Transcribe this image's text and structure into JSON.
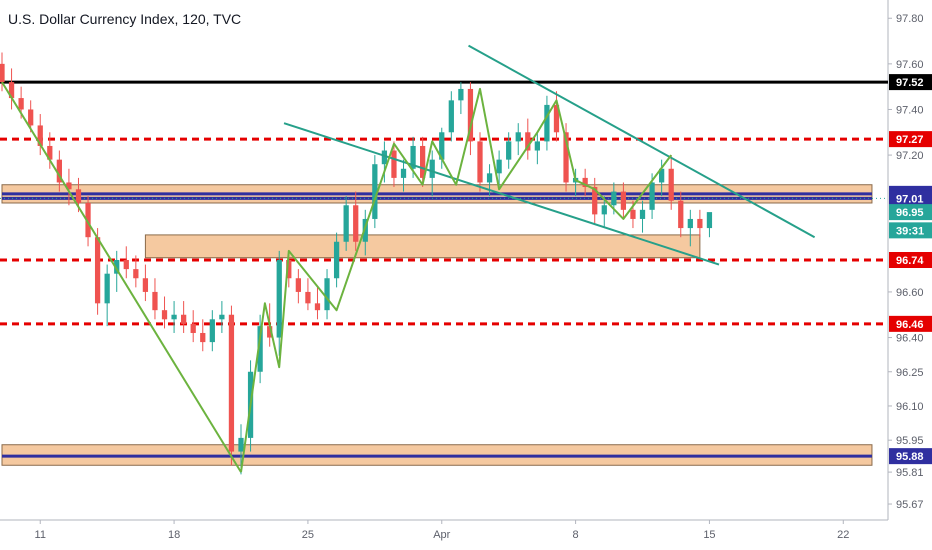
{
  "colors": {
    "up": "#26a69a",
    "down": "#ef5350",
    "resistance_black": "#000000",
    "dashed_red": "#e50000",
    "zone_fill": "#f5c9a0",
    "zone_line": "#2f2fa0",
    "channel": "#26a08a",
    "wave": "#6cb33f",
    "last_price": "#26a69a"
  },
  "chart_data": {
    "type": "candlestick",
    "title": "U.S. Dollar Currency Index, 120, TVC",
    "ylim": [
      95.6,
      97.88
    ],
    "y_ticks": [
      "97.80",
      "97.60",
      "97.40",
      "97.20",
      "96.60",
      "96.40",
      "96.25",
      "96.10",
      "95.95",
      "95.81",
      "95.67"
    ],
    "x_ticks": [
      "11",
      "18",
      "25",
      "Apr",
      "8",
      "15",
      "22"
    ],
    "x_tick_index": [
      4,
      18,
      32,
      46,
      60,
      74,
      88
    ],
    "x_range": [
      0,
      91
    ],
    "price_labels": [
      {
        "value": 97.52,
        "label": "97.52",
        "color": "#000000"
      },
      {
        "value": 97.27,
        "label": "97.27",
        "color": "#e50000"
      },
      {
        "value": 97.03,
        "label": "97.03",
        "color": "#2f2fa0"
      },
      {
        "value": 97.01,
        "label": "97.01",
        "color": "#2f2fa0"
      },
      {
        "value": 96.95,
        "label": "96.95",
        "color": "#26a69a"
      },
      {
        "value": 96.87,
        "label": "39:31",
        "color": "#26a69a"
      },
      {
        "value": 96.74,
        "label": "96.74",
        "color": "#e50000"
      },
      {
        "value": 96.46,
        "label": "96.46",
        "color": "#e50000"
      },
      {
        "value": 95.88,
        "label": "95.88",
        "color": "#2f2fa0"
      }
    ],
    "horizontal_lines": [
      {
        "value": 97.52,
        "style": "solid",
        "color": "#000000"
      },
      {
        "value": 97.27,
        "style": "dashed",
        "color": "#e50000"
      },
      {
        "value": 96.74,
        "style": "dashed",
        "color": "#e50000"
      },
      {
        "value": 96.46,
        "style": "dashed",
        "color": "#e50000"
      },
      {
        "value": 97.01,
        "style": "dotted",
        "color": "#26a69a"
      }
    ],
    "zones": [
      {
        "x0": 0,
        "x1": 91,
        "y0": 96.99,
        "y1": 97.07,
        "mid": [
          97.03,
          97.01
        ]
      },
      {
        "x0": 15,
        "x1": 73,
        "y0": 96.75,
        "y1": 96.85,
        "mid": []
      },
      {
        "x0": 0,
        "x1": 91,
        "y0": 95.84,
        "y1": 95.93,
        "mid": [
          95.88
        ]
      }
    ],
    "trend_lines": [
      {
        "x0": 29.5,
        "y0": 97.34,
        "x1": 75,
        "y1": 96.72
      },
      {
        "x0": 48.8,
        "y0": 97.68,
        "x1": 85,
        "y1": 96.84
      }
    ],
    "wave_paths": [
      [
        [
          0,
          97.52
        ],
        [
          25,
          95.81
        ]
      ],
      [
        [
          25,
          95.81
        ],
        [
          27.5,
          96.55
        ],
        [
          29,
          96.27
        ],
        [
          30,
          96.78
        ],
        [
          35,
          96.52
        ],
        [
          41,
          97.25
        ],
        [
          44,
          97.07
        ],
        [
          45,
          97.26
        ],
        [
          47.5,
          97.07
        ],
        [
          50,
          97.49
        ],
        [
          52,
          97.05
        ],
        [
          56,
          97.3
        ],
        [
          58,
          97.44
        ],
        [
          60,
          97.09
        ],
        [
          62,
          97.05
        ],
        [
          65,
          96.92
        ],
        [
          70,
          97.2
        ]
      ]
    ],
    "candles": [
      [
        97.6,
        97.65,
        97.48,
        97.52
      ],
      [
        97.52,
        97.58,
        97.4,
        97.45
      ],
      [
        97.45,
        97.5,
        97.36,
        97.4
      ],
      [
        97.4,
        97.44,
        97.3,
        97.33
      ],
      [
        97.33,
        97.38,
        97.2,
        97.24
      ],
      [
        97.24,
        97.3,
        97.14,
        97.18
      ],
      [
        97.18,
        97.22,
        97.04,
        97.08
      ],
      [
        97.08,
        97.14,
        96.98,
        97.05
      ],
      [
        97.05,
        97.1,
        96.95,
        96.99
      ],
      [
        96.99,
        97.02,
        96.8,
        96.84
      ],
      [
        96.84,
        96.88,
        96.5,
        96.55
      ],
      [
        96.55,
        96.72,
        96.45,
        96.68
      ],
      [
        96.68,
        96.78,
        96.6,
        96.74
      ],
      [
        96.74,
        96.8,
        96.66,
        96.7
      ],
      [
        96.7,
        96.76,
        96.62,
        96.66
      ],
      [
        96.66,
        96.72,
        96.56,
        96.6
      ],
      [
        96.6,
        96.66,
        96.48,
        96.52
      ],
      [
        96.52,
        96.58,
        96.44,
        96.48
      ],
      [
        96.48,
        96.56,
        96.42,
        96.5
      ],
      [
        96.5,
        96.56,
        96.42,
        96.46
      ],
      [
        96.46,
        96.52,
        96.38,
        96.42
      ],
      [
        96.42,
        96.48,
        96.34,
        96.38
      ],
      [
        96.38,
        96.52,
        96.34,
        96.48
      ],
      [
        96.48,
        96.56,
        96.42,
        96.5
      ],
      [
        96.5,
        96.54,
        95.84,
        95.9
      ],
      [
        95.9,
        96.02,
        95.8,
        95.96
      ],
      [
        95.96,
        96.3,
        95.9,
        96.25
      ],
      [
        96.25,
        96.5,
        96.2,
        96.45
      ],
      [
        96.45,
        96.55,
        96.36,
        96.4
      ],
      [
        96.4,
        96.78,
        96.32,
        96.74
      ],
      [
        96.74,
        96.78,
        96.62,
        96.66
      ],
      [
        96.66,
        96.7,
        96.55,
        96.6
      ],
      [
        96.6,
        96.66,
        96.52,
        96.55
      ],
      [
        96.55,
        96.62,
        96.48,
        96.52
      ],
      [
        96.52,
        96.7,
        96.48,
        96.66
      ],
      [
        96.66,
        96.86,
        96.62,
        96.82
      ],
      [
        96.82,
        97.02,
        96.78,
        96.98
      ],
      [
        96.98,
        97.04,
        96.78,
        96.82
      ],
      [
        96.82,
        96.96,
        96.76,
        96.92
      ],
      [
        96.92,
        97.2,
        96.88,
        97.16
      ],
      [
        97.16,
        97.26,
        97.08,
        97.22
      ],
      [
        97.22,
        97.26,
        97.06,
        97.1
      ],
      [
        97.1,
        97.18,
        97.04,
        97.14
      ],
      [
        97.14,
        97.28,
        97.1,
        97.24
      ],
      [
        97.24,
        97.28,
        97.06,
        97.1
      ],
      [
        97.1,
        97.22,
        97.02,
        97.18
      ],
      [
        97.18,
        97.32,
        97.14,
        97.3
      ],
      [
        97.3,
        97.48,
        97.26,
        97.44
      ],
      [
        97.44,
        97.52,
        97.38,
        97.49
      ],
      [
        97.49,
        97.52,
        97.2,
        97.26
      ],
      [
        97.26,
        97.3,
        97.04,
        97.08
      ],
      [
        97.08,
        97.16,
        97.02,
        97.12
      ],
      [
        97.12,
        97.22,
        97.06,
        97.18
      ],
      [
        97.18,
        97.3,
        97.14,
        97.26
      ],
      [
        97.26,
        97.34,
        97.2,
        97.3
      ],
      [
        97.3,
        97.36,
        97.18,
        97.22
      ],
      [
        97.22,
        97.3,
        97.16,
        97.26
      ],
      [
        97.26,
        97.46,
        97.22,
        97.42
      ],
      [
        97.42,
        97.48,
        97.26,
        97.3
      ],
      [
        97.3,
        97.34,
        97.04,
        97.08
      ],
      [
        97.08,
        97.14,
        97.02,
        97.1
      ],
      [
        97.1,
        97.14,
        97.02,
        97.06
      ],
      [
        97.06,
        97.1,
        96.9,
        96.94
      ],
      [
        96.94,
        97.02,
        96.88,
        96.98
      ],
      [
        96.98,
        97.08,
        96.94,
        97.04
      ],
      [
        97.04,
        97.08,
        96.92,
        96.96
      ],
      [
        96.96,
        97.0,
        96.88,
        96.92
      ],
      [
        96.92,
        97.0,
        96.86,
        96.96
      ],
      [
        96.96,
        97.12,
        96.92,
        97.08
      ],
      [
        97.08,
        97.18,
        97.02,
        97.14
      ],
      [
        97.14,
        97.2,
        96.96,
        97.0
      ],
      [
        97.0,
        97.04,
        96.84,
        96.88
      ],
      [
        96.88,
        96.96,
        96.8,
        96.92
      ],
      [
        96.92,
        96.96,
        96.84,
        96.88
      ],
      [
        96.88,
        96.94,
        96.84,
        96.95
      ]
    ]
  }
}
